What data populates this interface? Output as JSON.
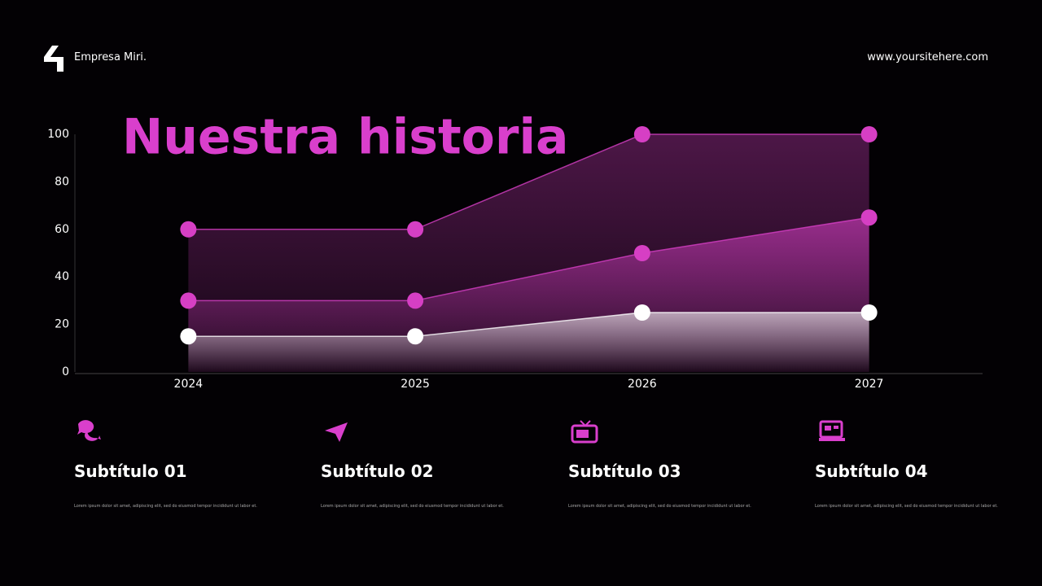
{
  "header": {
    "brand": "Empresa Miri.",
    "site": "www.yoursitehere.com"
  },
  "chart_data": {
    "type": "area",
    "title": "Nuestra historia",
    "categories": [
      "2024",
      "2025",
      "2026",
      "2027"
    ],
    "series": [
      {
        "color": "#d63fc4",
        "values": [
          60,
          60,
          100,
          100
        ]
      },
      {
        "color": "#d63fc4",
        "values": [
          30,
          30,
          50,
          65
        ]
      },
      {
        "color": "#ffffff",
        "values": [
          15,
          15,
          25,
          25
        ]
      }
    ],
    "ylim": [
      0,
      100
    ],
    "yticks": [
      0,
      20,
      40,
      60,
      80,
      100
    ]
  },
  "features": [
    {
      "title": "Subtítulo 01",
      "text": "Lorem ipsum dolor sit amet, adipiscing elit, sed do eiusmod tempor incididunt ut labor et."
    },
    {
      "title": "Subtítulo 02",
      "text": "Lorem ipsum dolor sit amet, adipiscing elit, sed do eiusmod tempor incididunt ut labor et."
    },
    {
      "title": "Subtítulo 03",
      "text": "Lorem ipsum dolor sit amet, adipiscing elit, sed do eiusmod tempor incididunt ut labor et."
    },
    {
      "title": "Subtítulo 04",
      "text": "Lorem ipsum dolor sit amet, adipiscing elit, sed do eiusmod tempor incididunt ut labor et."
    }
  ]
}
